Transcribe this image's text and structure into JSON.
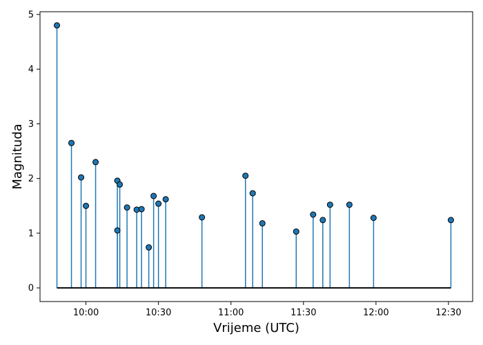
{
  "chart_data": {
    "type": "stem",
    "xlabel": "Vrijeme (UTC)",
    "ylabel": "Magnituda",
    "x_ticks": [
      "10:00",
      "10:30",
      "11:00",
      "11:30",
      "12:00",
      "12:30"
    ],
    "y_ticks": [
      "0",
      "1",
      "2",
      "3",
      "4",
      "5"
    ],
    "xlim": [
      "09:41",
      "12:40"
    ],
    "ylim": [
      -0.25,
      5.05
    ],
    "baseline": 0,
    "colors": {
      "stem": "#1f77b4",
      "marker": "#1f77b4",
      "marker_edge": "#000000",
      "baseline": "#000000"
    },
    "points": [
      {
        "x": "09:48",
        "y": 4.8
      },
      {
        "x": "09:54",
        "y": 2.65
      },
      {
        "x": "09:58",
        "y": 2.02
      },
      {
        "x": "10:00",
        "y": 1.5
      },
      {
        "x": "10:04",
        "y": 2.3
      },
      {
        "x": "10:13",
        "y": 1.05
      },
      {
        "x": "10:13",
        "y": 1.96
      },
      {
        "x": "10:14",
        "y": 1.89
      },
      {
        "x": "10:17",
        "y": 1.47
      },
      {
        "x": "10:21",
        "y": 1.43
      },
      {
        "x": "10:23",
        "y": 1.44
      },
      {
        "x": "10:26",
        "y": 0.74
      },
      {
        "x": "10:28",
        "y": 1.68
      },
      {
        "x": "10:30",
        "y": 1.54
      },
      {
        "x": "10:33",
        "y": 1.62
      },
      {
        "x": "10:48",
        "y": 1.29
      },
      {
        "x": "11:06",
        "y": 2.05
      },
      {
        "x": "11:09",
        "y": 1.73
      },
      {
        "x": "11:13",
        "y": 1.18
      },
      {
        "x": "11:27",
        "y": 1.03
      },
      {
        "x": "11:34",
        "y": 1.34
      },
      {
        "x": "11:38",
        "y": 1.24
      },
      {
        "x": "11:41",
        "y": 1.52
      },
      {
        "x": "11:49",
        "y": 1.52
      },
      {
        "x": "11:59",
        "y": 1.28
      },
      {
        "x": "12:31",
        "y": 1.24
      }
    ]
  }
}
